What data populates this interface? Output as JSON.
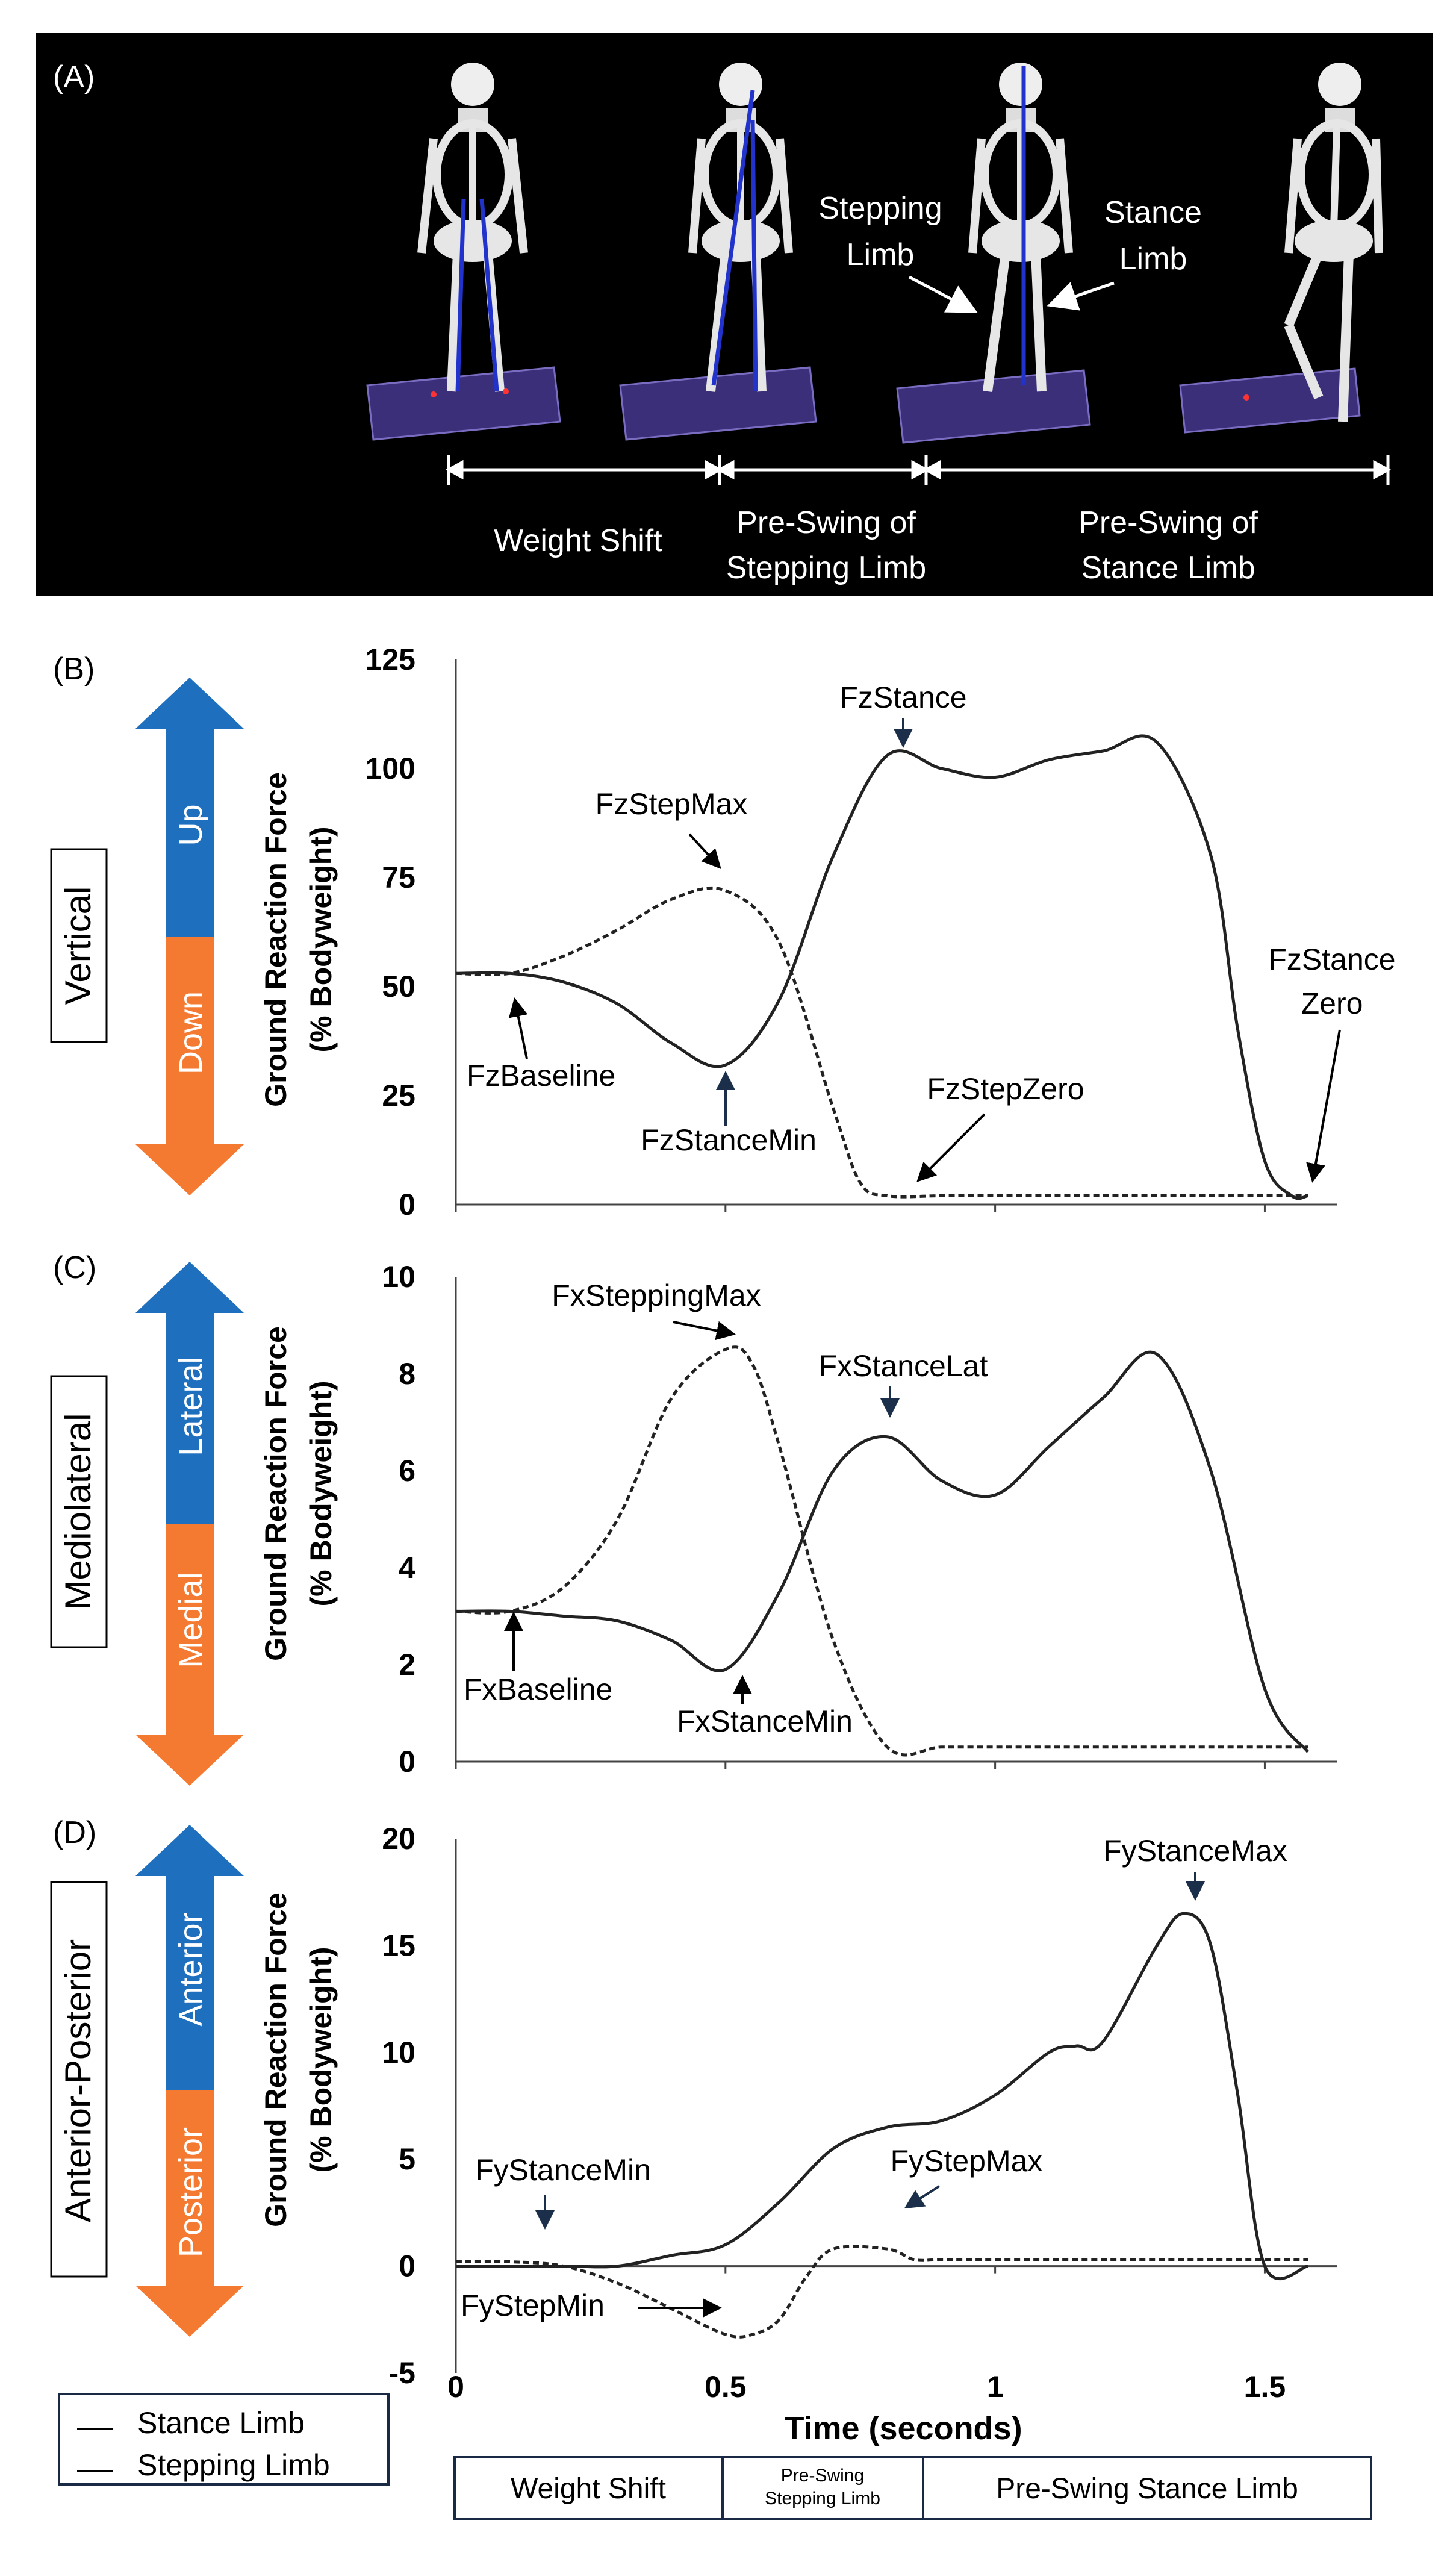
{
  "panel_a": {
    "label": "(A)",
    "callouts": {
      "stepping_1": "Stepping",
      "stepping_2": "Limb",
      "stance_1": "Stance",
      "stance_2": "Limb"
    },
    "phases": {
      "p1": "Weight Shift",
      "p2_1": "Pre-Swing of",
      "p2_2": "Stepping Limb",
      "p3_1": "Pre-Swing of",
      "p3_2": "Stance Limb"
    }
  },
  "colors": {
    "up": "#1f6fbf",
    "down": "#f47a31",
    "panel_a_bg": "#000000",
    "line": "#222222"
  },
  "y_axis_label_1": "Ground Reaction Force",
  "y_axis_label_2": "(% Bodyweight)",
  "x_axis_label": "Time (seconds)",
  "x_ticks": [
    "0",
    "0.5",
    "1",
    "1.5"
  ],
  "legend": {
    "stance": "Stance Limb",
    "stepping": "Stepping Limb"
  },
  "phase_bar": {
    "p1": "Weight Shift",
    "p2_1": "Pre-Swing",
    "p2_2": "Stepping Limb",
    "p3": "Pre-Swing Stance Limb"
  },
  "chart_data": [
    {
      "type": "line",
      "panel": "(B)",
      "direction": "Vertical",
      "arrow_up": "Up",
      "arrow_down": "Down",
      "xlim": [
        0,
        1.6
      ],
      "ylim": [
        0,
        125
      ],
      "yticks": [
        "0",
        "25",
        "50",
        "75",
        "100",
        "125"
      ],
      "series": [
        {
          "name": "Stance Limb",
          "style": "solid",
          "x": [
            0,
            0.1,
            0.2,
            0.3,
            0.4,
            0.5,
            0.6,
            0.7,
            0.8,
            0.9,
            1.0,
            1.1,
            1.2,
            1.3,
            1.4,
            1.45,
            1.5,
            1.55,
            1.58
          ],
          "y": [
            53,
            53,
            51,
            46,
            37,
            32,
            47,
            80,
            103,
            100,
            98,
            102,
            104,
            106,
            80,
            40,
            10,
            2,
            2
          ]
        },
        {
          "name": "Stepping Limb",
          "style": "dashed",
          "x": [
            0,
            0.1,
            0.2,
            0.3,
            0.4,
            0.5,
            0.6,
            0.7,
            0.75,
            0.8,
            0.9,
            1.0,
            1.2,
            1.4,
            1.58
          ],
          "y": [
            53,
            53,
            57,
            63,
            70,
            72,
            60,
            22,
            5,
            2,
            2,
            2,
            2,
            2,
            2
          ]
        }
      ],
      "annotations": [
        "FzStance",
        "FzStepMax",
        "FzBaseline",
        "FzStanceMin",
        "FzStepZero",
        "FzStance",
        "Zero"
      ]
    },
    {
      "type": "line",
      "panel": "(C)",
      "direction": "Mediolateral",
      "arrow_up": "Lateral",
      "arrow_down": "Medial",
      "xlim": [
        0,
        1.6
      ],
      "ylim": [
        0,
        10
      ],
      "yticks": [
        "0",
        "2",
        "4",
        "6",
        "8",
        "10"
      ],
      "series": [
        {
          "name": "Stance Limb",
          "style": "solid",
          "x": [
            0,
            0.1,
            0.2,
            0.3,
            0.4,
            0.5,
            0.6,
            0.7,
            0.8,
            0.9,
            1.0,
            1.1,
            1.2,
            1.3,
            1.4,
            1.5,
            1.58
          ],
          "y": [
            3.1,
            3.1,
            3.0,
            2.9,
            2.5,
            1.9,
            3.5,
            6.0,
            6.7,
            5.8,
            5.5,
            6.5,
            7.5,
            8.4,
            6.0,
            1.5,
            0.2
          ]
        },
        {
          "name": "Stepping Limb",
          "style": "dashed",
          "x": [
            0,
            0.1,
            0.2,
            0.3,
            0.4,
            0.5,
            0.55,
            0.6,
            0.7,
            0.8,
            0.9,
            1.0,
            1.2,
            1.4,
            1.58
          ],
          "y": [
            3.1,
            3.1,
            3.6,
            5.0,
            7.5,
            8.5,
            8.2,
            6.5,
            2.5,
            0.3,
            0.3,
            0.3,
            0.3,
            0.3,
            0.3
          ]
        }
      ],
      "annotations": [
        "FxSteppingMax",
        "FxStanceLat",
        "FxBaseline",
        "FxStanceMin"
      ]
    },
    {
      "type": "line",
      "panel": "(D)",
      "direction": "Anterior-Posterior",
      "arrow_up": "Anterior",
      "arrow_down": "Posterior",
      "xlim": [
        0,
        1.6
      ],
      "ylim": [
        -5,
        20
      ],
      "yticks": [
        "-5",
        "0",
        "5",
        "10",
        "15",
        "20"
      ],
      "series": [
        {
          "name": "Stance Limb",
          "style": "solid",
          "x": [
            0,
            0.1,
            0.2,
            0.3,
            0.4,
            0.5,
            0.6,
            0.7,
            0.8,
            0.9,
            1.0,
            1.1,
            1.15,
            1.2,
            1.3,
            1.35,
            1.4,
            1.45,
            1.5,
            1.58
          ],
          "y": [
            0,
            0,
            0,
            0,
            0.5,
            1,
            3,
            5.5,
            6.5,
            6.8,
            8,
            10,
            10.3,
            10.5,
            15,
            16.5,
            15,
            8,
            0,
            0
          ]
        },
        {
          "name": "Stepping Limb",
          "style": "dashed",
          "x": [
            0,
            0.1,
            0.2,
            0.3,
            0.4,
            0.5,
            0.55,
            0.6,
            0.65,
            0.7,
            0.8,
            0.85,
            0.9,
            1.0,
            1.2,
            1.4,
            1.58
          ],
          "y": [
            0.2,
            0.2,
            0,
            -0.8,
            -2,
            -3.2,
            -3.2,
            -2.5,
            -0.5,
            0.8,
            0.8,
            0.3,
            0.3,
            0.3,
            0.3,
            0.3,
            0.3
          ]
        }
      ],
      "annotations": [
        "FyStanceMax",
        "FyStanceMin",
        "FyStepMax",
        "FyStepMin"
      ]
    }
  ]
}
